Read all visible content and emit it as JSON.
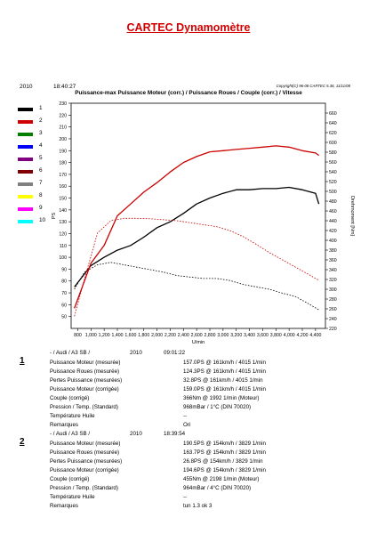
{
  "page_title": "CARTEC Dynamomètre",
  "header": {
    "year": "2010",
    "time": "18:40:27",
    "copyright": "Copyright(C) 96-08 CARTEC 5.36, 11/11/08"
  },
  "chart_title": "Puissance-max Puissance Moteur (corr.) / Puissance Roues / Couple (corr.) / Vitesse",
  "legend": [
    {
      "num": "1",
      "color": "#000000"
    },
    {
      "num": "2",
      "color": "#cc0000"
    },
    {
      "num": "3",
      "color": "#008000"
    },
    {
      "num": "4",
      "color": "#0000ff"
    },
    {
      "num": "5",
      "color": "#800080"
    },
    {
      "num": "6",
      "color": "#800000"
    },
    {
      "num": "7",
      "color": "#808080"
    },
    {
      "num": "8",
      "color": "#ffff00"
    },
    {
      "num": "9",
      "color": "#ff00ff"
    },
    {
      "num": "10",
      "color": "#00ffff"
    }
  ],
  "chart_data": {
    "type": "line",
    "xlabel": "U/min",
    "ylabel_left": "PS",
    "ylabel_right": "Drehmoment [Nm]",
    "xlim": [
      700,
      4550
    ],
    "ylim_left": [
      40,
      230
    ],
    "ylim_right": [
      220,
      680
    ],
    "x_ticks": [
      800,
      1000,
      1200,
      1400,
      1600,
      1800,
      2000,
      2200,
      2400,
      2600,
      2800,
      3000,
      3200,
      3400,
      3600,
      3800,
      4000,
      4200,
      4400
    ],
    "x_tick_labels": [
      "800",
      "1,000",
      "1,200",
      "1,400",
      "1,600",
      "1,800",
      "2,000",
      "2,200",
      "2,400",
      "2,600",
      "2,800",
      "3,000",
      "3,200",
      "3,400",
      "3,600",
      "3,800",
      "4,000",
      "4,200",
      "4,400"
    ],
    "y_left_ticks": [
      50,
      60,
      70,
      80,
      90,
      100,
      110,
      120,
      130,
      140,
      150,
      160,
      170,
      180,
      190,
      200,
      210,
      220,
      230
    ],
    "y_right_ticks": [
      220,
      240,
      260,
      280,
      300,
      320,
      340,
      360,
      380,
      400,
      420,
      440,
      460,
      480,
      500,
      520,
      540,
      560,
      580,
      600,
      620,
      640,
      660
    ],
    "grid": "off",
    "series": [
      {
        "name": "1",
        "style": "solid",
        "axis": "left",
        "color": "#000000",
        "x": [
          750,
          1000,
          1200,
          1400,
          1600,
          1800,
          2000,
          2200,
          2400,
          2600,
          2800,
          3000,
          3200,
          3400,
          3600,
          3800,
          4000,
          4200,
          4400,
          4450
        ],
        "y": [
          75,
          93,
          100,
          106,
          110,
          117,
          125,
          130,
          137,
          145,
          150,
          154,
          157,
          157,
          158,
          158,
          159,
          157,
          154,
          145
        ]
      },
      {
        "name": "1",
        "style": "dotted",
        "axis": "right",
        "color": "#000000",
        "x": [
          750,
          900,
          1100,
          1300,
          1500,
          1700,
          1900,
          2100,
          2300,
          2500,
          2700,
          2900,
          3100,
          3300,
          3500,
          3700,
          3900,
          4100,
          4300,
          4450
        ],
        "y": [
          300,
          335,
          350,
          355,
          350,
          345,
          340,
          335,
          328,
          325,
          322,
          322,
          318,
          310,
          305,
          300,
          292,
          285,
          270,
          258
        ]
      },
      {
        "name": "2",
        "style": "solid",
        "axis": "left",
        "color": "#cc0000",
        "x": [
          750,
          1000,
          1200,
          1400,
          1600,
          1800,
          2000,
          2200,
          2400,
          2600,
          2800,
          3000,
          3200,
          3400,
          3600,
          3800,
          4000,
          4200,
          4400,
          4450
        ],
        "y": [
          57,
          95,
          110,
          135,
          145,
          155,
          163,
          172,
          180,
          185,
          189,
          190,
          191,
          192,
          193,
          194,
          193,
          190,
          188,
          186
        ]
      },
      {
        "name": "2",
        "style": "dotted",
        "axis": "right",
        "color": "#cc0000",
        "x": [
          750,
          900,
          1100,
          1300,
          1500,
          1700,
          1900,
          2100,
          2300,
          2500,
          2700,
          2900,
          3100,
          3300,
          3500,
          3700,
          3900,
          4100,
          4300,
          4450
        ],
        "y": [
          245,
          320,
          415,
          440,
          445,
          445,
          444,
          442,
          440,
          436,
          432,
          428,
          420,
          408,
          392,
          375,
          360,
          345,
          330,
          318
        ]
      }
    ]
  },
  "records": [
    {
      "num": "1",
      "vehicle": "- / Audi / A3 SB /",
      "year": "2010",
      "time": "09:01:22",
      "rows": [
        {
          "label": "Puissance Moteur (mesurée)",
          "value": "157.0PS @ 161km/h / 4015 1/min"
        },
        {
          "label": "Puissance Roues (mesurée)",
          "value": "124.3PS @ 161km/h / 4015 1/min"
        },
        {
          "label": "Pertes Puissance (mesurées)",
          "value": "32.8PS @ 161km/h / 4015 1/min"
        },
        {
          "label": "Puissance Moteur (corrigée)",
          "value": "159.0PS @ 161km/h / 4015 1/min"
        },
        {
          "label": "Couple (corrigé)",
          "value": "366Nm @ 1992 1/min (Moteur)"
        },
        {
          "label": "Pression / Temp. (Standard)",
          "value": "968mBar / 1°C   (DIN 70020)"
        },
        {
          "label": "Température Huile",
          "value": "--"
        },
        {
          "label": "Remarques",
          "value": "Ori"
        }
      ]
    },
    {
      "num": "2",
      "vehicle": "- / Audi / A3 SB /",
      "year": "2010",
      "time": "18:39:54",
      "rows": [
        {
          "label": "Puissance Moteur (mesurée)",
          "value": "190.5PS @ 154km/h / 3829 1/min"
        },
        {
          "label": "Puissance Roues (mesurée)",
          "value": "163.7PS @ 154km/h / 3829 1/min"
        },
        {
          "label": "Pertes Puissance (mesurées)",
          "value": "26.8PS @ 154km/h / 3829 1/min"
        },
        {
          "label": "Puissance Moteur (corrigée)",
          "value": "194.6PS @ 154km/h / 3829 1/min"
        },
        {
          "label": "Couple (corrigé)",
          "value": "455Nm @ 2198 1/min (Moteur)"
        },
        {
          "label": "Pression / Temp. (Standard)",
          "value": "964mBar / 4°C   (DIN 70020)"
        },
        {
          "label": "Température Huile",
          "value": "--"
        },
        {
          "label": "Remarques",
          "value": "tun 1.3 ok 3"
        }
      ]
    }
  ]
}
